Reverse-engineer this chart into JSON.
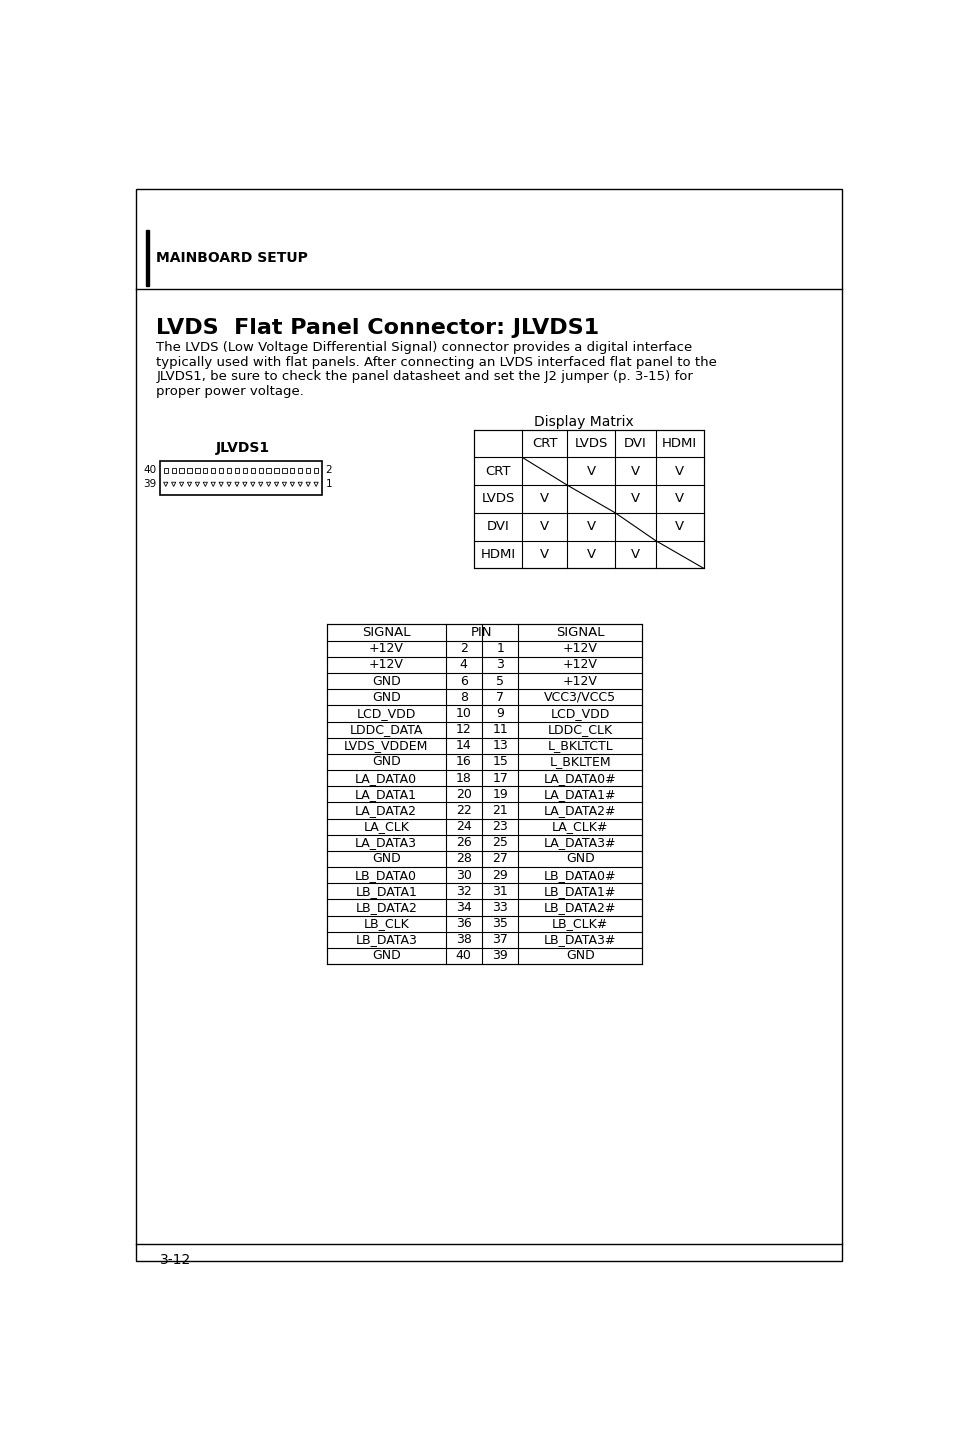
{
  "page_bg": "#ffffff",
  "border_color": "#000000",
  "title_section": "MAINBOARD SETUP",
  "main_title": "LVDS  Flat Panel Connector: JLVDS1",
  "body_lines": [
    "The LVDS (Low Voltage Differential Signal) connector provides a digital interface",
    "typically used with flat panels. After connecting an LVDS interfaced flat panel to the",
    "JLVDS1, be sure to check the panel datasheet and set the J2 jumper (p. 3-15) for",
    "proper power voltage."
  ],
  "display_matrix_title": "Display Matrix",
  "matrix_headers": [
    "",
    "CRT",
    "LVDS",
    "DVI",
    "HDMI"
  ],
  "matrix_rows": [
    [
      "CRT",
      "",
      "V",
      "V",
      "V"
    ],
    [
      "LVDS",
      "V",
      "",
      "V",
      "V"
    ],
    [
      "DVI",
      "V",
      "V",
      "",
      "V"
    ],
    [
      "HDMI",
      "V",
      "V",
      "V",
      ""
    ]
  ],
  "connector_label": "JLVDS1",
  "pin_table_rows": [
    [
      "+12V",
      "2",
      "1",
      "+12V"
    ],
    [
      "+12V",
      "4",
      "3",
      "+12V"
    ],
    [
      "GND",
      "6",
      "5",
      "+12V"
    ],
    [
      "GND",
      "8",
      "7",
      "VCC3/VCC5"
    ],
    [
      "LCD_VDD",
      "10",
      "9",
      "LCD_VDD"
    ],
    [
      "LDDC_DATA",
      "12",
      "11",
      "LDDC_CLK"
    ],
    [
      "LVDS_VDDEM",
      "14",
      "13",
      "L_BKLTCTL"
    ],
    [
      "GND",
      "16",
      "15",
      "L_BKLTEM"
    ],
    [
      "LA_DATA0",
      "18",
      "17",
      "LA_DATA0#"
    ],
    [
      "LA_DATA1",
      "20",
      "19",
      "LA_DATA1#"
    ],
    [
      "LA_DATA2",
      "22",
      "21",
      "LA_DATA2#"
    ],
    [
      "LA_CLK",
      "24",
      "23",
      "LA_CLK#"
    ],
    [
      "LA_DATA3",
      "26",
      "25",
      "LA_DATA3#"
    ],
    [
      "GND",
      "28",
      "27",
      "GND"
    ],
    [
      "LB_DATA0",
      "30",
      "29",
      "LB_DATA0#"
    ],
    [
      "LB_DATA1",
      "32",
      "31",
      "LB_DATA1#"
    ],
    [
      "LB_DATA2",
      "34",
      "33",
      "LB_DATA2#"
    ],
    [
      "LB_CLK",
      "36",
      "35",
      "LB_CLK#"
    ],
    [
      "LB_DATA3",
      "38",
      "37",
      "LB_DATA3#"
    ],
    [
      "GND",
      "40",
      "39",
      "GND"
    ]
  ],
  "page_number": "3-12"
}
